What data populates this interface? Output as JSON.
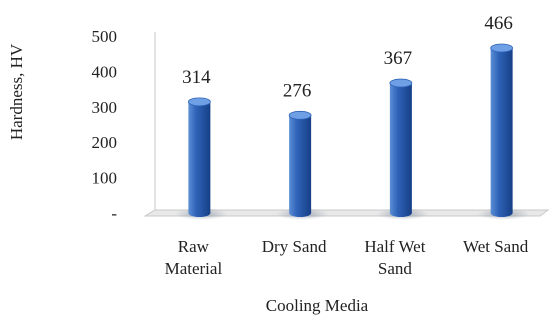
{
  "chart_data": {
    "type": "bar",
    "title": "",
    "xlabel": "Cooling Media",
    "ylabel": "Hardness, HV",
    "categories": [
      [
        "Raw",
        "Material"
      ],
      [
        "Dry Sand"
      ],
      [
        "Half Wet",
        "Sand"
      ],
      [
        "Wet Sand"
      ]
    ],
    "values": [
      314,
      276,
      367,
      466
    ],
    "data_labels": [
      "314",
      "276",
      "367",
      "466"
    ],
    "ylim": [
      0,
      500
    ],
    "yticks": [
      0,
      100,
      200,
      300,
      400,
      500
    ],
    "ytick_labels": [
      "-",
      "100",
      "200",
      "300",
      "400",
      "500"
    ],
    "grid": false,
    "legend": "none",
    "bar_style": "3d-cylinder",
    "colors": {
      "bar_light": "#5b8fd6",
      "bar_mid": "#2f63b8",
      "bar_dark": "#163f86",
      "bar_top": "#6fa0e6",
      "axis": "#c8c8c8",
      "floor": "#e8e8e8"
    }
  }
}
